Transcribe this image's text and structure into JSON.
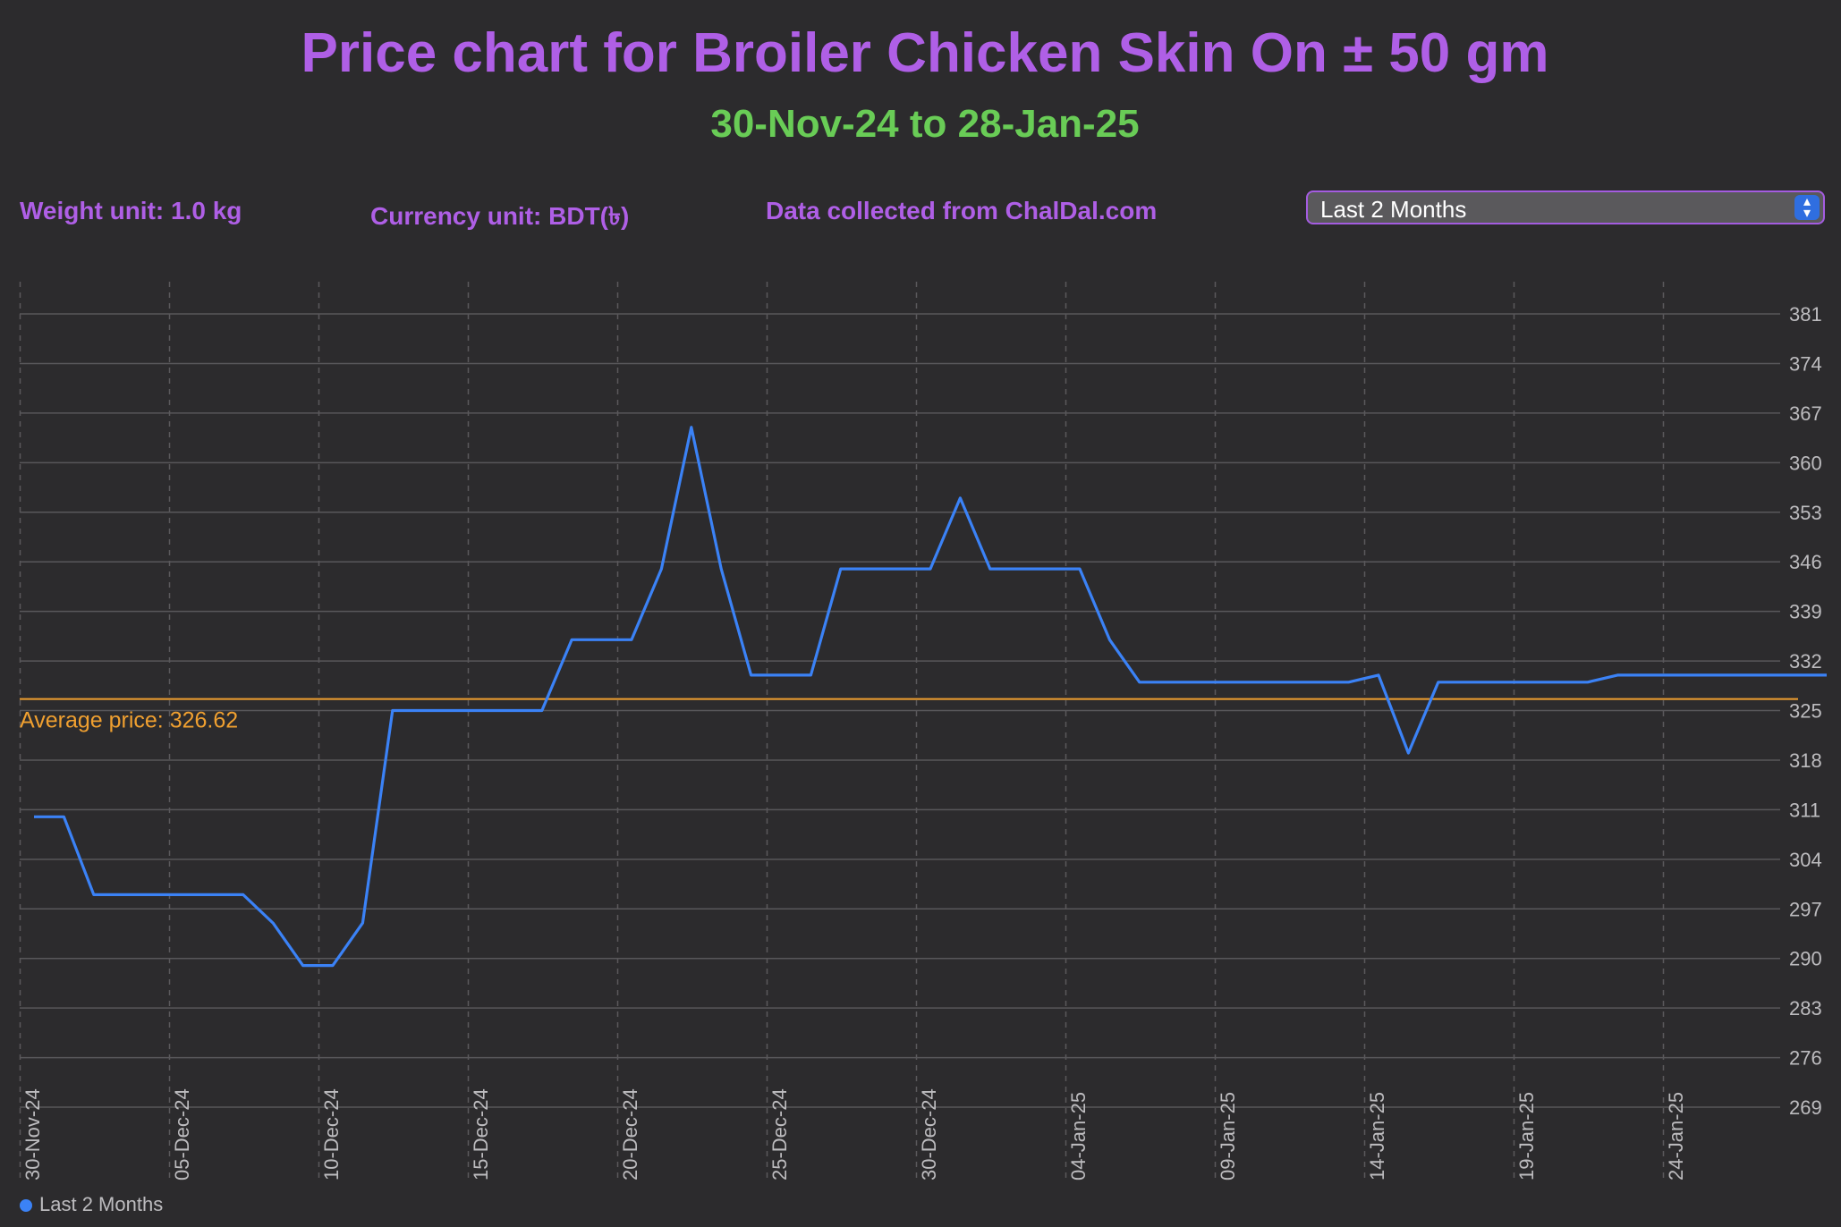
{
  "header": {
    "title": "Price chart for Broiler Chicken Skin On ± 50 gm",
    "subtitle": "30-Nov-24 to 28-Jan-25"
  },
  "info": {
    "weight_unit": "Weight unit: 1.0 kg",
    "currency_unit": "Currency unit: BDT(৳)",
    "source": "Data collected from ChalDal.com"
  },
  "range_select": {
    "value": "Last 2 Months"
  },
  "legend": {
    "label": "Last 2 Months"
  },
  "colors": {
    "line": "#3b82f6",
    "average": "#f0a030",
    "title": "#af5fe6",
    "subtitle": "#69cc56",
    "background": "#2c2b2d"
  },
  "chart_data": {
    "type": "line",
    "title": "Price chart for Broiler Chicken Skin On ± 50 gm",
    "x_ticks": [
      "30-Nov-24",
      "05-Dec-24",
      "10-Dec-24",
      "15-Dec-24",
      "20-Dec-24",
      "25-Dec-24",
      "30-Dec-24",
      "04-Jan-25",
      "09-Jan-25",
      "14-Jan-25",
      "19-Jan-25",
      "24-Jan-25"
    ],
    "y_ticks": [
      269,
      276,
      283,
      290,
      297,
      304,
      311,
      318,
      325,
      332,
      339,
      346,
      353,
      360,
      367,
      374,
      381
    ],
    "ylim": [
      269,
      381
    ],
    "x_range": [
      "30-Nov-24",
      "29-Jan-25"
    ],
    "grid": true,
    "average": {
      "label": "Average price: 326.62",
      "value": 326.62
    },
    "series": [
      {
        "name": "Last 2 Months",
        "points": [
          [
            "30-Nov-24",
            310
          ],
          [
            "01-Dec-24",
            310
          ],
          [
            "02-Dec-24",
            299
          ],
          [
            "03-Dec-24",
            299
          ],
          [
            "04-Dec-24",
            299
          ],
          [
            "05-Dec-24",
            299
          ],
          [
            "06-Dec-24",
            299
          ],
          [
            "07-Dec-24",
            299
          ],
          [
            "08-Dec-24",
            295
          ],
          [
            "09-Dec-24",
            289
          ],
          [
            "10-Dec-24",
            289
          ],
          [
            "11-Dec-24",
            295
          ],
          [
            "12-Dec-24",
            325
          ],
          [
            "13-Dec-24",
            325
          ],
          [
            "14-Dec-24",
            325
          ],
          [
            "15-Dec-24",
            325
          ],
          [
            "16-Dec-24",
            325
          ],
          [
            "17-Dec-24",
            325
          ],
          [
            "18-Dec-24",
            335
          ],
          [
            "19-Dec-24",
            335
          ],
          [
            "20-Dec-24",
            335
          ],
          [
            "21-Dec-24",
            345
          ],
          [
            "22-Dec-24",
            365
          ],
          [
            "23-Dec-24",
            345
          ],
          [
            "24-Dec-24",
            330
          ],
          [
            "25-Dec-24",
            330
          ],
          [
            "26-Dec-24",
            330
          ],
          [
            "27-Dec-24",
            345
          ],
          [
            "28-Dec-24",
            345
          ],
          [
            "29-Dec-24",
            345
          ],
          [
            "30-Dec-24",
            345
          ],
          [
            "31-Dec-24",
            355
          ],
          [
            "01-Jan-25",
            345
          ],
          [
            "02-Jan-25",
            345
          ],
          [
            "03-Jan-25",
            345
          ],
          [
            "04-Jan-25",
            345
          ],
          [
            "05-Jan-25",
            335
          ],
          [
            "06-Jan-25",
            329
          ],
          [
            "12-Jan-25",
            329
          ],
          [
            "13-Jan-25",
            329
          ],
          [
            "14-Jan-25",
            330
          ],
          [
            "15-Jan-25",
            319
          ],
          [
            "16-Jan-25",
            329
          ],
          [
            "21-Jan-25",
            329
          ],
          [
            "22-Jan-25",
            330
          ],
          [
            "28-Jan-25",
            330
          ],
          [
            "29-Jan-25",
            330
          ]
        ]
      }
    ]
  }
}
